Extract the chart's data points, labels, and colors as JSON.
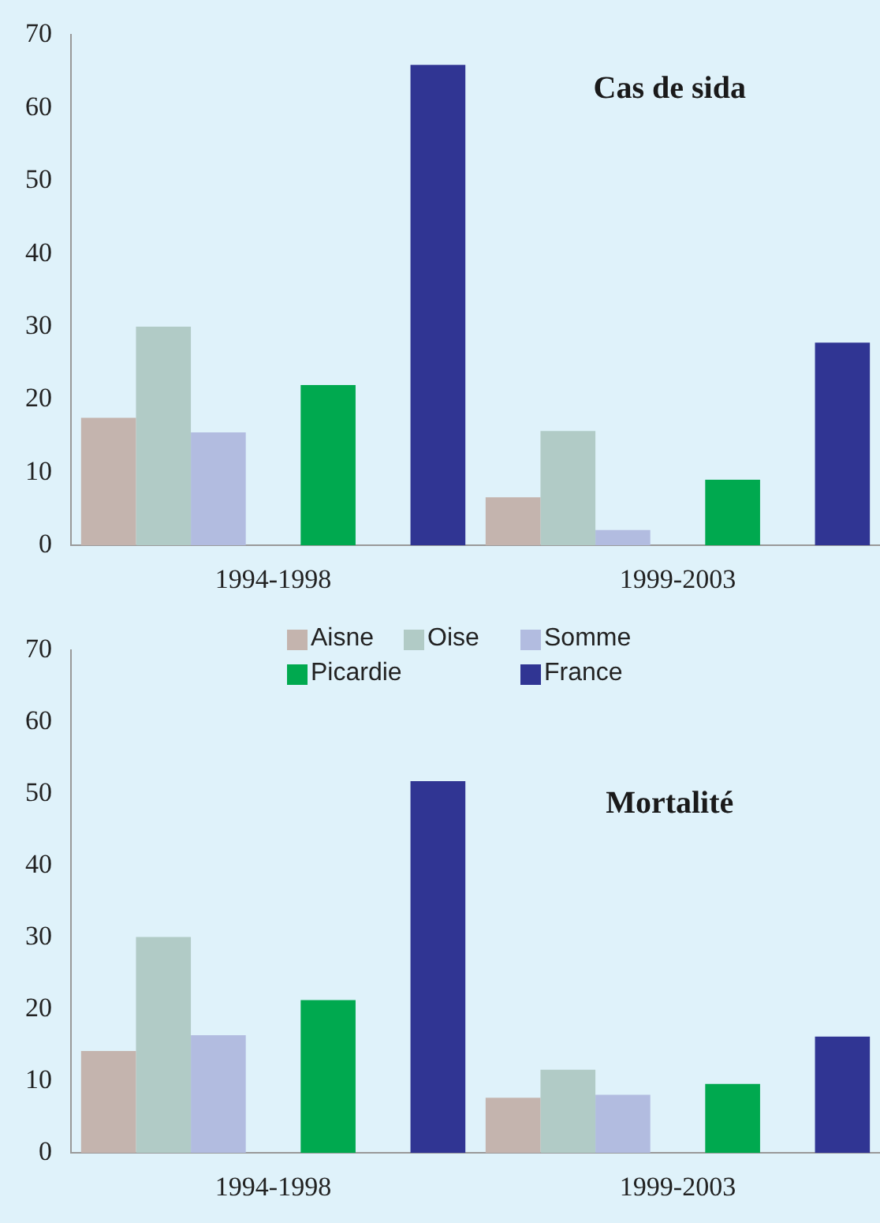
{
  "chart_data": [
    {
      "type": "bar",
      "title": "Cas de sida",
      "categories": [
        "1994-1998",
        "1999-2003"
      ],
      "series": [
        {
          "color": "#c4b4ae",
          "values": [
            17.5,
            6.6
          ]
        },
        {
          "color": "#b1cbc6",
          "values": [
            30.0,
            15.7
          ]
        },
        {
          "color": "#b2bce0",
          "values": [
            15.5,
            2.1
          ]
        },
        {
          "color": "#00a94f",
          "values": [
            22.0,
            9.0
          ]
        },
        {
          "color": "#303593",
          "values": [
            65.9,
            27.8
          ]
        }
      ],
      "ylim": [
        0,
        70
      ],
      "yticks": [
        0,
        10,
        20,
        30,
        40,
        50,
        60,
        70
      ],
      "grid": false,
      "legend": false
    },
    {
      "type": "bar",
      "title": "Mortalité",
      "categories": [
        "1994-1998",
        "1999-2003"
      ],
      "series": [
        {
          "name": "Aisne",
          "color": "#c4b4ae",
          "values": [
            14.2,
            7.7
          ]
        },
        {
          "name": "Oise",
          "color": "#b1cbc6",
          "values": [
            30.1,
            11.6
          ]
        },
        {
          "name": "Somme",
          "color": "#b2bce0",
          "values": [
            16.4,
            8.1
          ]
        },
        {
          "name": "Picardie",
          "color": "#00a94f",
          "values": [
            21.3,
            9.6
          ]
        },
        {
          "name": "France",
          "color": "#303593",
          "values": [
            51.8,
            16.2
          ]
        }
      ],
      "ylim": [
        0,
        70
      ],
      "yticks": [
        0,
        10,
        20,
        30,
        40,
        50,
        60,
        70
      ],
      "grid": false,
      "legend": "top"
    }
  ]
}
